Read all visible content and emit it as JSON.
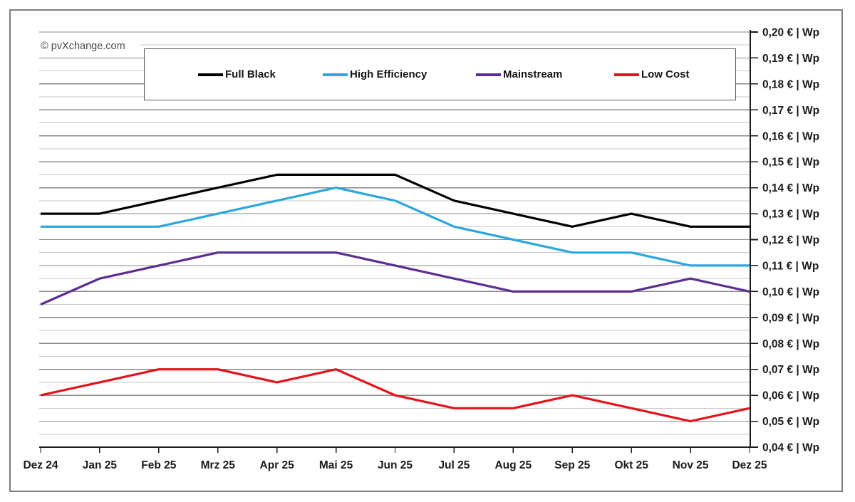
{
  "watermark": "© pvXchange.com",
  "colors": {
    "frame": "#7e7e7e",
    "grid_major": "#8a8a8a",
    "grid_minor": "#c7c7c7",
    "axis": "#1a1a1a",
    "tick_label": "#1a1a1a"
  },
  "chart_data": {
    "type": "line",
    "title": "",
    "xlabel": "",
    "ylabel": "€ | Wp",
    "grid": "horizontal, minor lines every 0.005, major every 0.01",
    "legend_position": "top inside box",
    "ylim": [
      0.04,
      0.2
    ],
    "y_major_step": 0.01,
    "y_minor_step": 0.005,
    "y_tick_labels": [
      "0,20 € | Wp",
      "0,19 € | Wp",
      "0,18 € | Wp",
      "0,17 € | Wp",
      "0,16 € | Wp",
      "0,15 € | Wp",
      "0,14 € | Wp",
      "0,13 € | Wp",
      "0,12 € | Wp",
      "0,11 € | Wp",
      "0,10 € | Wp",
      "0,09 € | Wp",
      "0,08 € | Wp",
      "0,07 € | Wp",
      "0,06 € | Wp",
      "0,05 € | Wp",
      "0,04 € | Wp"
    ],
    "categories": [
      "Dez 24",
      "Jan 25",
      "Feb 25",
      "Mrz 25",
      "Apr 25",
      "Mai 25",
      "Jun 25",
      "Jul 25",
      "Aug 25",
      "Sep 25",
      "Okt 25",
      "Nov 25",
      "Dez 25"
    ],
    "series": [
      {
        "name": "Full Black",
        "color": "#000000",
        "values": [
          0.13,
          0.13,
          0.135,
          0.14,
          0.145,
          0.145,
          0.145,
          0.135,
          0.13,
          0.125,
          0.13,
          0.125,
          0.125
        ]
      },
      {
        "name": "High Efficiency",
        "color": "#2ba7de",
        "values": [
          0.125,
          0.125,
          0.125,
          0.13,
          0.135,
          0.14,
          0.135,
          0.125,
          0.12,
          0.115,
          0.115,
          0.11,
          0.11
        ]
      },
      {
        "name": "Mainstream",
        "color": "#5c2e91",
        "values": [
          0.095,
          0.105,
          0.11,
          0.115,
          0.115,
          0.115,
          0.11,
          0.105,
          0.1,
          0.1,
          0.1,
          0.105,
          0.1
        ]
      },
      {
        "name": "Low Cost",
        "color": "#e3131b",
        "values": [
          0.06,
          0.065,
          0.07,
          0.07,
          0.065,
          0.07,
          0.06,
          0.055,
          0.055,
          0.06,
          0.055,
          0.05,
          0.055
        ]
      }
    ]
  }
}
